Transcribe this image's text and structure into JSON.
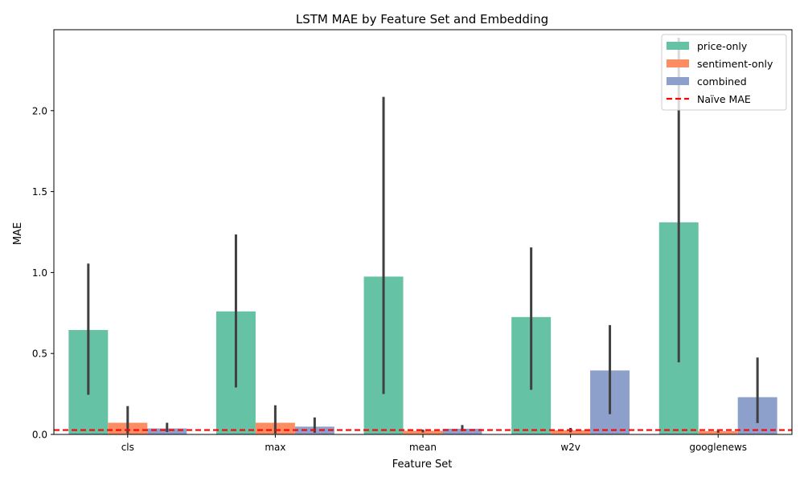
{
  "chart_data": {
    "type": "bar",
    "title": "LSTM MAE by Feature Set and Embedding",
    "xlabel": "Feature Set",
    "ylabel": "MAE",
    "categories": [
      "cls",
      "max",
      "mean",
      "w2v",
      "googlenews"
    ],
    "ylim": [
      0,
      2.5
    ],
    "yticks": [
      "0.0",
      "0.5",
      "1.0",
      "1.5",
      "2.0"
    ],
    "ytick_values": [
      0,
      0.5,
      1.0,
      1.5,
      2.0
    ],
    "grid": false,
    "legend_position": "top-right",
    "series": [
      {
        "name": "price-only",
        "color": "#66c2a5",
        "values": [
          0.645,
          0.76,
          0.975,
          0.725,
          1.31
        ],
        "error_low": [
          0.245,
          0.29,
          0.25,
          0.275,
          0.445
        ],
        "error_high": [
          1.055,
          1.235,
          2.085,
          1.155,
          2.45
        ]
      },
      {
        "name": "sentiment-only",
        "color": "#fc8d62",
        "values": [
          0.072,
          0.072,
          0.022,
          0.025,
          0.02
        ],
        "error_low": [
          0.005,
          0.005,
          0.012,
          0.013,
          0.01
        ],
        "error_high": [
          0.175,
          0.18,
          0.03,
          0.04,
          0.03
        ]
      },
      {
        "name": "combined",
        "color": "#8da0cb",
        "values": [
          0.037,
          0.048,
          0.035,
          0.395,
          0.23
        ],
        "error_low": [
          0.015,
          0.01,
          0.02,
          0.125,
          0.07
        ],
        "error_high": [
          0.072,
          0.105,
          0.058,
          0.675,
          0.475
        ]
      }
    ],
    "reference_line": {
      "name": "Naïve MAE",
      "value": 0.027,
      "color": "#ff0000",
      "style": "dashed"
    },
    "errorbar_color": "#404040"
  }
}
